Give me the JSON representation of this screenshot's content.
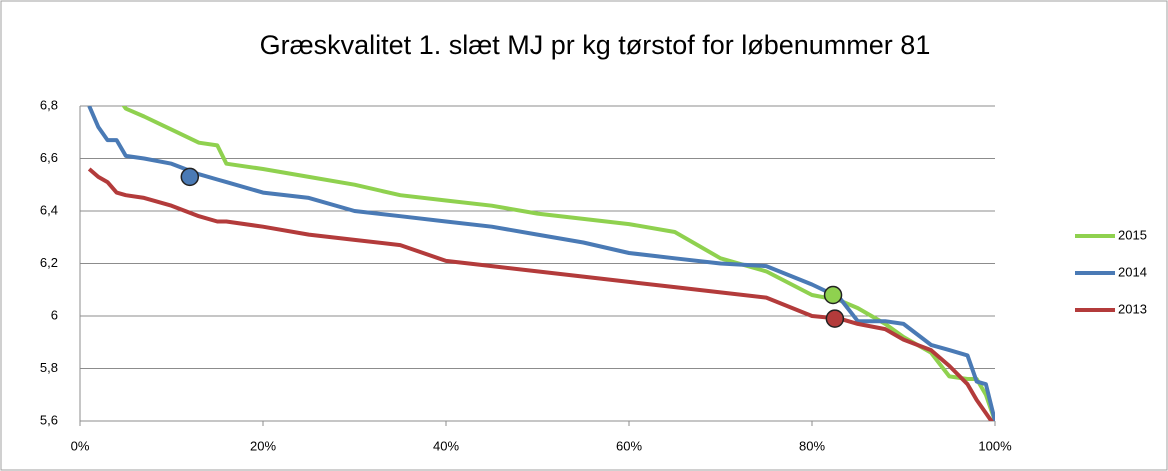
{
  "chart_data": {
    "type": "line",
    "title": "Græskvalitet 1. slæt MJ pr kg tørstof for løbenummer 81",
    "x": [
      1,
      2,
      3,
      4,
      5,
      7,
      10,
      13,
      15,
      16,
      20,
      25,
      30,
      35,
      40,
      45,
      50,
      55,
      60,
      65,
      70,
      75,
      80,
      83,
      85,
      88,
      90,
      93,
      95,
      97,
      98,
      99,
      100
    ],
    "series": [
      {
        "name": "2015",
        "color": "#8fd14f",
        "values": [
          null,
          null,
          null,
          6.84,
          6.79,
          6.76,
          6.71,
          6.66,
          6.65,
          6.58,
          6.56,
          6.53,
          6.5,
          6.46,
          6.44,
          6.42,
          6.39,
          6.37,
          6.35,
          6.32,
          6.22,
          6.17,
          6.08,
          6.06,
          6.03,
          5.97,
          5.92,
          5.86,
          5.77,
          5.76,
          5.76,
          5.7,
          5.6
        ],
        "marker": {
          "x": 82.3,
          "y": 6.08
        }
      },
      {
        "name": "2014",
        "color": "#4a7ab5",
        "values": [
          6.8,
          6.72,
          6.67,
          6.67,
          6.61,
          6.6,
          6.58,
          6.54,
          6.52,
          6.51,
          6.47,
          6.45,
          6.4,
          6.38,
          6.36,
          6.34,
          6.31,
          6.28,
          6.24,
          6.22,
          6.2,
          6.19,
          6.12,
          6.07,
          5.98,
          5.98,
          5.97,
          5.89,
          5.87,
          5.85,
          5.75,
          5.74,
          5.6
        ],
        "marker": {
          "x": 12,
          "y": 6.53
        }
      },
      {
        "name": "2013",
        "color": "#b33b3b",
        "values": [
          6.56,
          6.53,
          6.51,
          6.47,
          6.46,
          6.45,
          6.42,
          6.38,
          6.36,
          6.36,
          6.34,
          6.31,
          6.29,
          6.27,
          6.21,
          6.19,
          6.17,
          6.15,
          6.13,
          6.11,
          6.09,
          6.07,
          6,
          5.99,
          5.97,
          5.95,
          5.91,
          5.87,
          5.81,
          5.74,
          5.68,
          5.63,
          5.58
        ],
        "marker": {
          "x": 82.5,
          "y": 5.99
        }
      }
    ],
    "xlim": [
      0,
      100
    ],
    "xticks": [
      {
        "value": 0,
        "label": "0%"
      },
      {
        "value": 20,
        "label": "20%"
      },
      {
        "value": 40,
        "label": "40%"
      },
      {
        "value": 60,
        "label": "60%"
      },
      {
        "value": 80,
        "label": "80%"
      },
      {
        "value": 100,
        "label": "100%"
      }
    ],
    "ylim": [
      5.6,
      6.8
    ],
    "yticks": [
      {
        "value": 5.6,
        "label": "5,6"
      },
      {
        "value": 5.8,
        "label": "5,8"
      },
      6,
      {
        "value": 6.2,
        "label": "6,2"
      },
      {
        "value": 6.4,
        "label": "6,4"
      },
      {
        "value": 6.6,
        "label": "6,6"
      },
      {
        "value": 6.8,
        "label": "6,8"
      }
    ],
    "grid": true,
    "legend": "right"
  }
}
